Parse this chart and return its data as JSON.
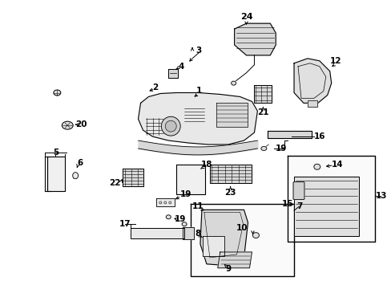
{
  "bg_color": "#ffffff",
  "fig_width": 4.89,
  "fig_height": 3.6,
  "dpi": 100,
  "lc": "#000000",
  "fs": 7.5
}
